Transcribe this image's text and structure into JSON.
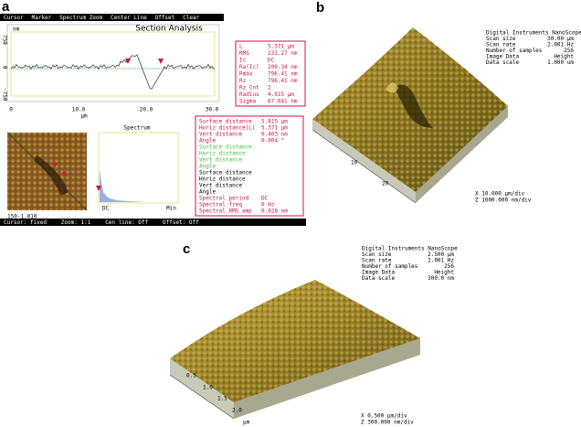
{
  "panel_a": {
    "label": "a",
    "menu": [
      "Cursor",
      "Marker",
      "Spectrum Zoom",
      "Center Line",
      "Offset",
      "Clear"
    ],
    "title": "Section Analysis",
    "y_unit": "nm",
    "y_labels": [
      "750",
      "0",
      "-750"
    ],
    "x_labels": [
      "0",
      "10.0",
      "20.0",
      "30.0"
    ],
    "x_unit": "µm",
    "stats": [
      {
        "label": "L",
        "value": "5.371 µm"
      },
      {
        "label": "RMS",
        "value": "231.27 nm"
      },
      {
        "label": "Ic",
        "value": "DC"
      },
      {
        "label": "Ra(Ic)",
        "value": "200.34 nm"
      },
      {
        "label": "Rmax",
        "value": "796.41 nm"
      },
      {
        "label": "Rz",
        "value": "796.41 nm"
      },
      {
        "label": "Rz Cnt",
        "value": "2"
      },
      {
        "label": "Radius",
        "value": "4.915 µm"
      },
      {
        "label": "Sigma",
        "value": "67.041 nm"
      }
    ],
    "stats_color": "#d0104a",
    "spectrum_title": "Spectrum",
    "spectrum_x_labels": [
      "DC",
      "Min"
    ],
    "image_caption": "150-1.010",
    "measurements": [
      {
        "label": "Surface distance",
        "value": "5.815 µm",
        "color": "#d0104a"
      },
      {
        "label": "Horiz distance(L)",
        "value": "5.371 µm",
        "color": "#d0104a"
      },
      {
        "label": "Vert distance",
        "value": "0.403 nm",
        "color": "#d0104a"
      },
      {
        "label": "Angle",
        "value": "0.004 °",
        "color": "#d0104a"
      },
      {
        "label": "Surface distance",
        "color": "#3ec43e"
      },
      {
        "label": "Horiz distance",
        "color": "#3ec43e"
      },
      {
        "label": "Vert distance",
        "color": "#3ec43e"
      },
      {
        "label": "Angle",
        "color": "#3ec43e"
      },
      {
        "label": "Surface distance",
        "color": "#000000"
      },
      {
        "label": "Horiz distance",
        "color": "#000000"
      },
      {
        "label": "Vert distance",
        "color": "#000000"
      },
      {
        "label": "Angle",
        "color": "#000000"
      },
      {
        "label": "Spectral period",
        "value": "DC",
        "color": "#d0104a"
      },
      {
        "label": "Spectral freq",
        "value": "0 Hz",
        "color": "#d0104a"
      },
      {
        "label": "Spectral RMS amp",
        "value": "0.028 nm",
        "color": "#d0104a"
      }
    ],
    "status": [
      "Cursor: fixed",
      "Zoom: 1:1",
      "Cen line: Off",
      "Offset: Off"
    ]
  },
  "panel_b": {
    "label": "b",
    "info": [
      {
        "label": "Digital Instruments NanoScope"
      },
      {
        "label": "Scan size",
        "value": "30.00 µm"
      },
      {
        "label": "Scan rate",
        "value": "2.001 Hz"
      },
      {
        "label": "Number of samples",
        "value": "256"
      },
      {
        "label": "Image Data",
        "value": "Height"
      },
      {
        "label": "Data scale",
        "value": "1.000 um"
      }
    ],
    "axis_labels": [
      "10",
      "20"
    ],
    "scale": [
      "X 10.000 µm/div",
      "Z 1000.000 nm/div"
    ]
  },
  "panel_c": {
    "label": "c",
    "info": [
      {
        "label": "Digital Instruments NanoScope"
      },
      {
        "label": "Scan size",
        "value": "2.500 µm"
      },
      {
        "label": "Scan rate",
        "value": "2.001 Hz"
      },
      {
        "label": "Number of samples",
        "value": "256"
      },
      {
        "label": "Image Data",
        "value": "Height"
      },
      {
        "label": "Data scale",
        "value": "300.0 nm"
      }
    ],
    "axis_labels": [
      "0.5",
      "1.0",
      "1.5",
      "2.0"
    ],
    "axis_unit": "µm",
    "scale": [
      "X 0.500 µm/div",
      "Z 300.000 nm/div"
    ]
  }
}
